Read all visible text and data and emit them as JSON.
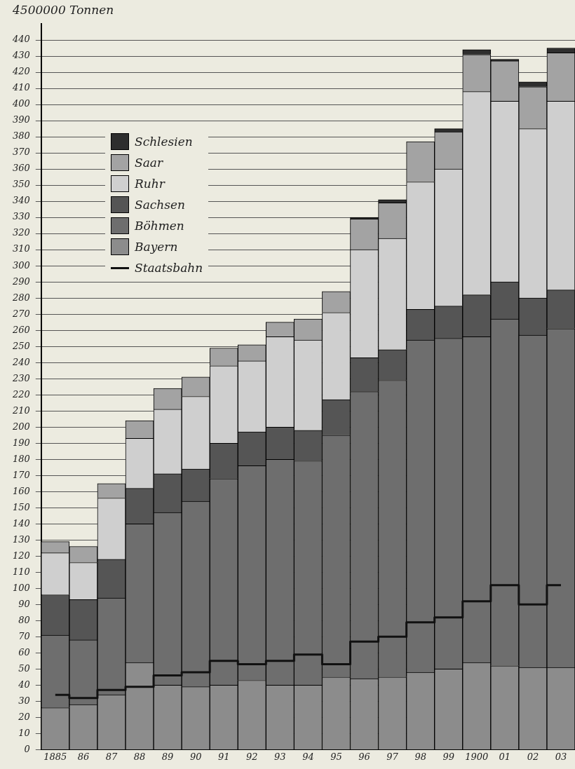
{
  "chart_data": {
    "type": "bar",
    "stacked": true,
    "ylabel": "4500000 Tonnen",
    "categories": [
      "1885",
      "86",
      "87",
      "88",
      "89",
      "90",
      "91",
      "92",
      "93",
      "94",
      "95",
      "96",
      "97",
      "98",
      "99",
      "1900",
      "01",
      "02",
      "03"
    ],
    "series": [
      {
        "name": "Bayern",
        "color": "#8c8c8c",
        "values": [
          26,
          28,
          34,
          54,
          40,
          39,
          40,
          43,
          40,
          40,
          45,
          44,
          45,
          48,
          50,
          54,
          52,
          51,
          51
        ]
      },
      {
        "name": "Böhmen",
        "color": "#6e6e6e",
        "values": [
          45,
          40,
          60,
          86,
          107,
          115,
          128,
          133,
          140,
          139,
          150,
          178,
          184,
          206,
          205,
          202,
          215,
          206,
          210
        ]
      },
      {
        "name": "Sachsen",
        "color": "#555555",
        "values": [
          25,
          25,
          24,
          22,
          24,
          20,
          22,
          21,
          20,
          19,
          22,
          21,
          19,
          19,
          20,
          26,
          23,
          23,
          24
        ]
      },
      {
        "name": "Ruhr",
        "color": "#cfcfcf",
        "values": [
          26,
          23,
          38,
          31,
          40,
          45,
          48,
          44,
          56,
          56,
          54,
          67,
          69,
          79,
          85,
          126,
          112,
          105,
          117
        ]
      },
      {
        "name": "Saar",
        "color": "#a3a3a3",
        "values": [
          7,
          10,
          9,
          11,
          13,
          12,
          11,
          10,
          9,
          13,
          13,
          19,
          22,
          25,
          23,
          23,
          25,
          26,
          30
        ]
      },
      {
        "name": "Schlesien",
        "color": "#2e2e2e",
        "values": [
          null,
          null,
          null,
          null,
          null,
          null,
          null,
          null,
          null,
          null,
          null,
          1,
          2,
          null,
          2,
          3,
          1,
          3,
          3
        ]
      },
      {
        "name": "Staatsbahn",
        "type": "step",
        "color": "#111111",
        "values": [
          34,
          32,
          37,
          39,
          46,
          48,
          55,
          53,
          55,
          59,
          53,
          67,
          70,
          79,
          82,
          92,
          102,
          90,
          102
        ]
      }
    ],
    "ylim": [
      0,
      450
    ],
    "yticks": [
      0,
      10,
      20,
      30,
      40,
      50,
      60,
      70,
      80,
      90,
      100,
      110,
      120,
      130,
      140,
      150,
      160,
      170,
      180,
      190,
      200,
      210,
      220,
      230,
      240,
      250,
      260,
      270,
      280,
      290,
      300,
      310,
      320,
      330,
      340,
      350,
      360,
      370,
      380,
      390,
      400,
      410,
      420,
      430,
      440
    ],
    "grid": "y",
    "legend": "top left",
    "marker": "none"
  }
}
